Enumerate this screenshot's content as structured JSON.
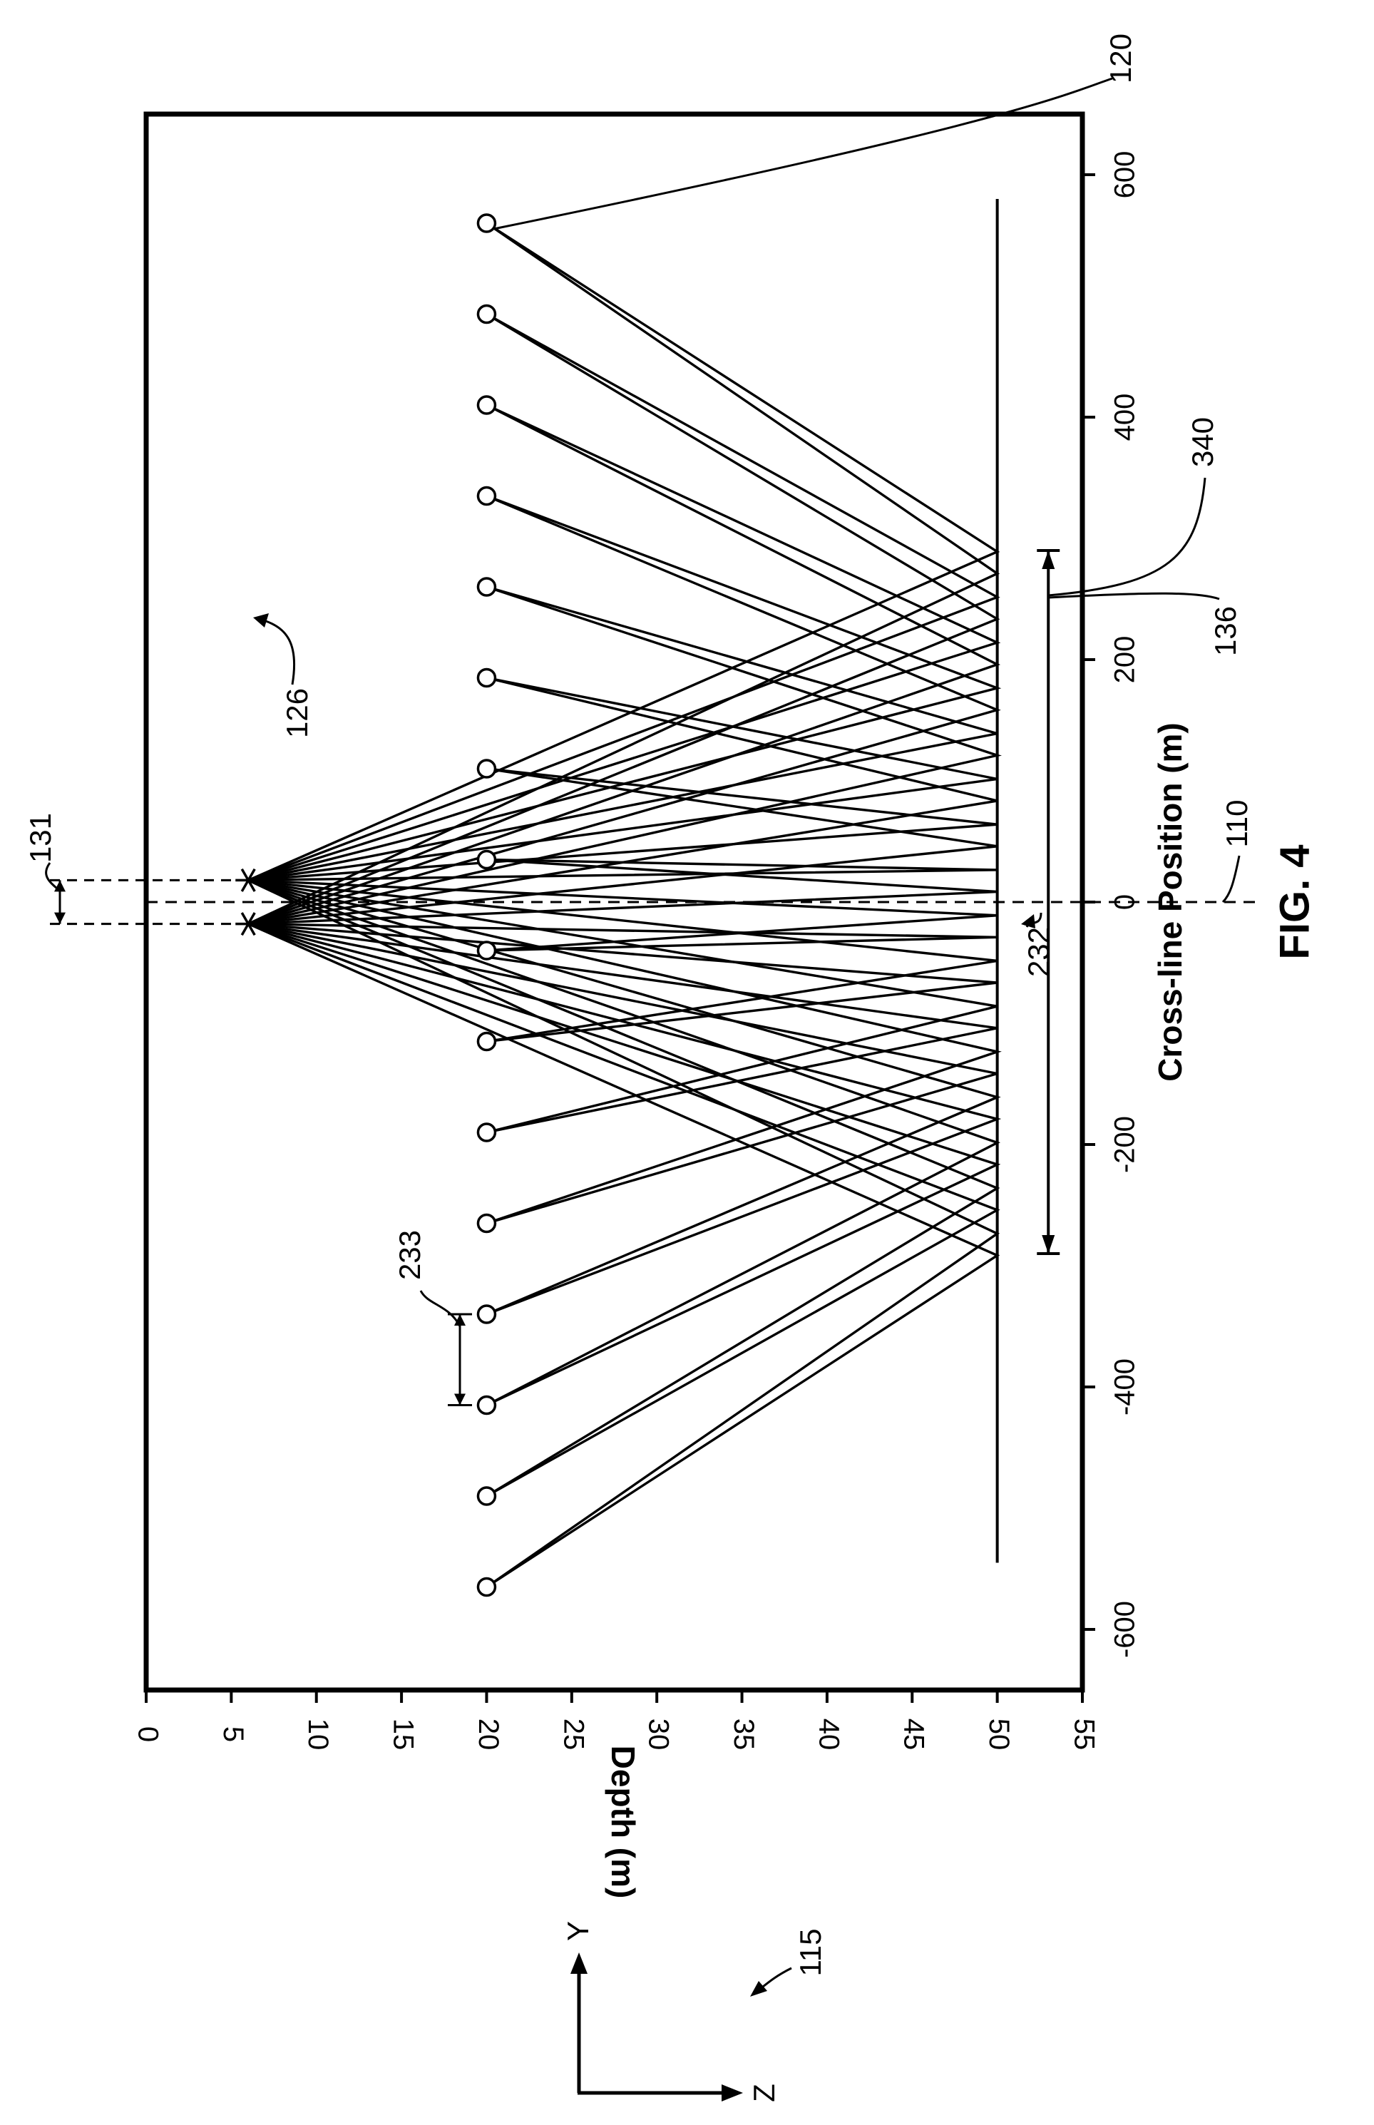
{
  "figure": {
    "label": "FIG. 4"
  },
  "chart_data": {
    "type": "line",
    "xlabel": "Cross-line Position (m)",
    "ylabel": "Depth (m)",
    "xlim": [
      -650,
      650
    ],
    "ylim": [
      0,
      55
    ],
    "y_inverted": true,
    "x_ticks": [
      -600,
      -400,
      -200,
      0,
      200,
      400,
      600
    ],
    "y_ticks": [
      0,
      5,
      10,
      15,
      20,
      25,
      30,
      35,
      40,
      45,
      50,
      55
    ],
    "grid": false,
    "legend": "none",
    "sources": [
      {
        "x": -18,
        "y": 6
      },
      {
        "x": 18,
        "y": 6
      }
    ],
    "receivers": [
      {
        "x": -565,
        "y": 20
      },
      {
        "x": -490,
        "y": 20
      },
      {
        "x": -415,
        "y": 20
      },
      {
        "x": -340,
        "y": 20
      },
      {
        "x": -265,
        "y": 20
      },
      {
        "x": -190,
        "y": 20
      },
      {
        "x": -115,
        "y": 20
      },
      {
        "x": -40,
        "y": 20
      },
      {
        "x": 35,
        "y": 20
      },
      {
        "x": 110,
        "y": 20
      },
      {
        "x": 185,
        "y": 20
      },
      {
        "x": 260,
        "y": 20
      },
      {
        "x": 335,
        "y": 20
      },
      {
        "x": 410,
        "y": 20
      },
      {
        "x": 485,
        "y": 20
      },
      {
        "x": 560,
        "y": 20
      }
    ],
    "reflector": {
      "depth": 50,
      "x_range": [
        -545,
        580
      ]
    },
    "subsurface_coverage": {
      "depth": 53,
      "x_range": [
        -290,
        290
      ]
    },
    "center_line_x": 0,
    "ray_midpoint_range": [
      -290,
      290
    ],
    "annotations": {
      "receiver_ref": "120",
      "source_ref": "126",
      "source_separation_ref": "131",
      "midpoint_ref": "232",
      "receiver_spacing_ref": "233",
      "coverage_ref": "340",
      "coverage_alt_ref": "136",
      "centerline_ref": "110",
      "axes_ref": "115"
    }
  },
  "axes_indicator": {
    "y_label": "Y",
    "z_label": "Z"
  },
  "style": {
    "line_color": "#000000",
    "background": "#ffffff"
  }
}
